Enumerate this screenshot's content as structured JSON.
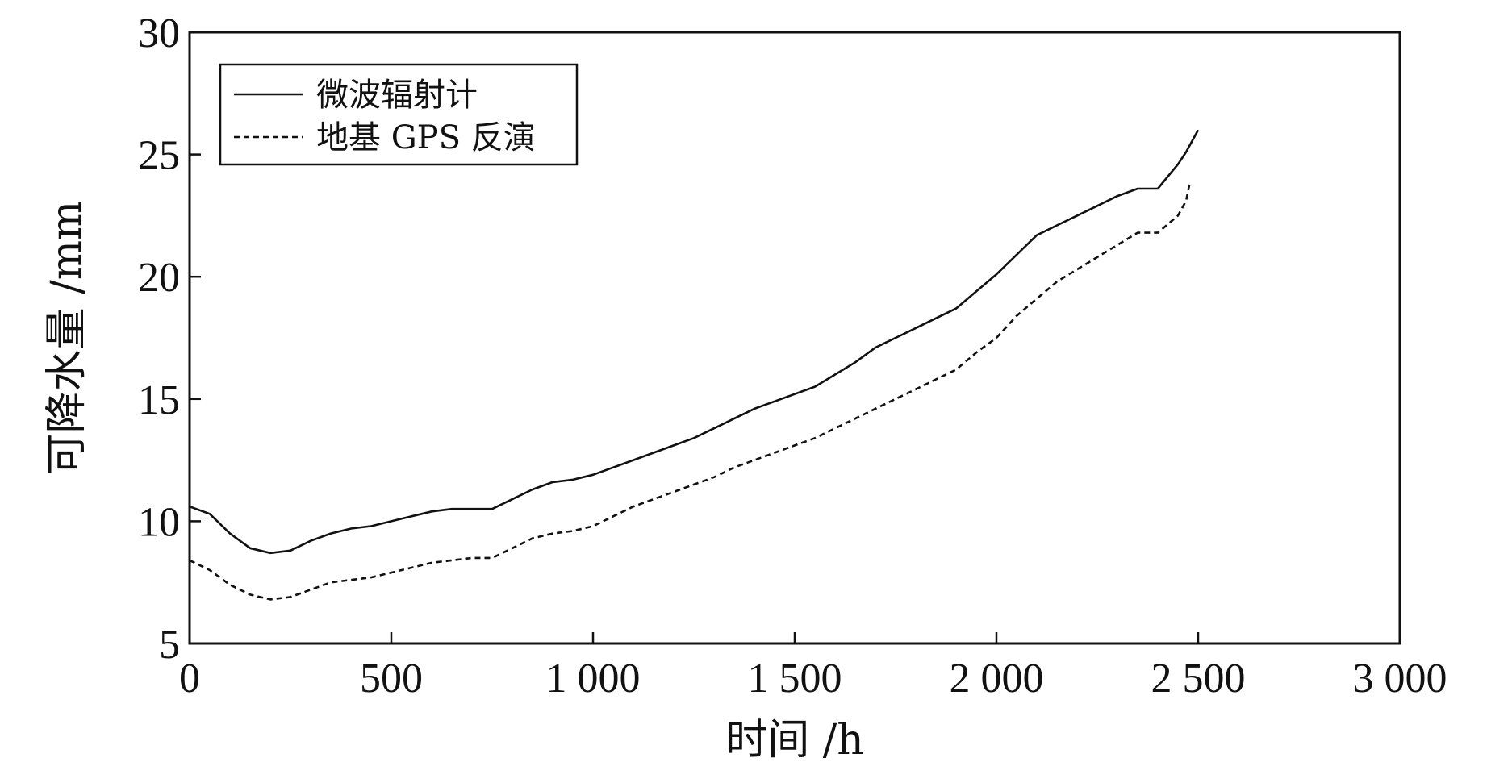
{
  "chart_data": {
    "type": "line",
    "xlabel": "时间 /h",
    "ylabel": "可降水量 /mm",
    "xlim": [
      0,
      3000
    ],
    "ylim": [
      5,
      30
    ],
    "x_ticks": [
      0,
      500,
      1000,
      1500,
      2000,
      2500,
      3000
    ],
    "x_tick_labels": [
      "0",
      "500",
      "1 000",
      "1 500",
      "2 000",
      "2 500",
      "3 000"
    ],
    "y_ticks": [
      5,
      10,
      15,
      20,
      25,
      30
    ],
    "y_tick_labels": [
      "5",
      "10",
      "15",
      "20",
      "25",
      "30"
    ],
    "legend_position": "top-left",
    "series": [
      {
        "name": "微波辐射计",
        "style": "solid",
        "color": "#111111",
        "x": [
          0,
          50,
          100,
          150,
          200,
          250,
          300,
          350,
          400,
          450,
          500,
          550,
          600,
          650,
          700,
          750,
          800,
          850,
          900,
          950,
          1000,
          1050,
          1100,
          1150,
          1200,
          1250,
          1300,
          1350,
          1400,
          1450,
          1500,
          1550,
          1600,
          1650,
          1700,
          1750,
          1800,
          1850,
          1900,
          1950,
          2000,
          2050,
          2100,
          2150,
          2200,
          2250,
          2300,
          2350,
          2400,
          2450,
          2470,
          2500
        ],
        "values": [
          10.6,
          10.3,
          9.5,
          8.9,
          8.7,
          8.8,
          9.2,
          9.5,
          9.7,
          9.8,
          10.0,
          10.2,
          10.4,
          10.5,
          10.5,
          10.5,
          10.9,
          11.3,
          11.6,
          11.7,
          11.9,
          12.2,
          12.5,
          12.8,
          13.1,
          13.4,
          13.8,
          14.2,
          14.6,
          14.9,
          15.2,
          15.5,
          16.0,
          16.5,
          17.1,
          17.5,
          17.9,
          18.3,
          18.7,
          19.4,
          20.1,
          20.9,
          21.7,
          22.1,
          22.5,
          22.9,
          23.3,
          23.6,
          23.6,
          24.6,
          25.1,
          26.0
        ]
      },
      {
        "name": "地基 GPS 反演",
        "style": "dashed",
        "color": "#111111",
        "x": [
          0,
          50,
          100,
          150,
          200,
          250,
          300,
          350,
          400,
          450,
          500,
          550,
          600,
          650,
          700,
          750,
          800,
          850,
          900,
          950,
          1000,
          1050,
          1100,
          1150,
          1200,
          1250,
          1300,
          1350,
          1400,
          1450,
          1500,
          1550,
          1600,
          1650,
          1700,
          1750,
          1800,
          1850,
          1900,
          1950,
          2000,
          2050,
          2100,
          2150,
          2200,
          2250,
          2300,
          2350,
          2400,
          2450,
          2470,
          2480
        ],
        "values": [
          8.4,
          8.0,
          7.4,
          7.0,
          6.8,
          6.9,
          7.2,
          7.5,
          7.6,
          7.7,
          7.9,
          8.1,
          8.3,
          8.4,
          8.5,
          8.5,
          8.9,
          9.3,
          9.5,
          9.6,
          9.8,
          10.2,
          10.6,
          10.9,
          11.2,
          11.5,
          11.8,
          12.2,
          12.5,
          12.8,
          13.1,
          13.4,
          13.8,
          14.2,
          14.6,
          15.0,
          15.4,
          15.8,
          16.2,
          16.9,
          17.5,
          18.4,
          19.1,
          19.8,
          20.3,
          20.8,
          21.3,
          21.8,
          21.8,
          22.5,
          23.1,
          23.9
        ]
      }
    ]
  }
}
